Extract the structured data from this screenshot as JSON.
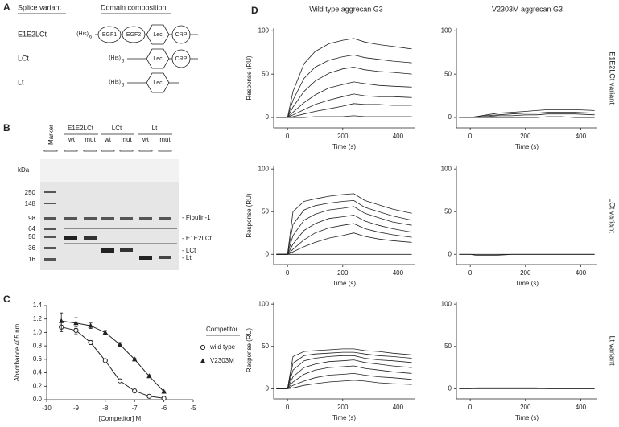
{
  "panel_a": {
    "label": "A",
    "headers": [
      "Splice variant",
      "Domain composition"
    ],
    "his": "(His)",
    "his_sub": "6",
    "rows": [
      {
        "name": "E1E2LCt",
        "domains": [
          "EGF1",
          "EGF2",
          "Lec",
          "CRP"
        ]
      },
      {
        "name": "LCt",
        "domains": [
          "Lec",
          "CRP"
        ]
      },
      {
        "name": "Lt",
        "domains": [
          "Lec"
        ]
      }
    ]
  },
  "panel_b": {
    "label": "B",
    "marker": "Marker",
    "groups": [
      "E1E2LCt",
      "LCt",
      "Lt"
    ],
    "lanes": [
      "wt",
      "mut"
    ],
    "unit": "kDa",
    "sizes": [
      "250",
      "148",
      "98",
      "64",
      "50",
      "36",
      "16"
    ],
    "bands": [
      "- Fibulin-1",
      "- E1E2LCt",
      "- LCt",
      "- Lt"
    ]
  },
  "panel_c": {
    "label": "C"
  },
  "panel_d": {
    "label": "D",
    "columns": [
      "Wild type aggrecan G3",
      "V2303M aggrecan G3"
    ],
    "rows": [
      "E1E2LCt variant",
      "LCt variant",
      "Lt variant"
    ]
  },
  "chart_data": [
    {
      "type": "line",
      "xlabel": "[Competitor] M",
      "ylabel": "Absorbance 405 nm",
      "legend_title": "Competitor",
      "x": [
        -9.5,
        -9,
        -8.5,
        -8,
        -7.5,
        -7,
        -6.5,
        -6
      ],
      "series": [
        {
          "name": "wild type",
          "color": "#222",
          "marker": "circle-open",
          "values": [
            1.08,
            1.03,
            0.85,
            0.58,
            0.28,
            0.13,
            0.05,
            0.02
          ],
          "errors": [
            0.07,
            0.05,
            0.03,
            0.02,
            0.01,
            0.01,
            0.01,
            0.01
          ]
        },
        {
          "name": "V2303M",
          "color": "#222",
          "marker": "triangle",
          "values": [
            1.17,
            1.14,
            1.1,
            1.0,
            0.82,
            0.6,
            0.35,
            0.12
          ],
          "errors": [
            0.12,
            0.08,
            0.04,
            0.03,
            0.03,
            0.02,
            0.02,
            0.01
          ]
        }
      ],
      "xlim": [
        -10,
        -5
      ],
      "xticks": [
        -10,
        -9,
        -8,
        -7,
        -6,
        -5
      ],
      "ylim": [
        0,
        1.4
      ],
      "yticks": [
        {
          "value": 0,
          "label": "0.0"
        },
        0.2,
        0.4,
        0.6,
        0.8,
        {
          "value": 1,
          "label": "1.0"
        },
        1.2,
        1.4
      ]
    },
    {
      "type": "line",
      "color": "#222",
      "xlabel": "Time (s)",
      "ylabel": "Response (RU)",
      "x": [
        -40,
        0,
        20,
        60,
        100,
        150,
        200,
        240,
        280,
        330,
        380,
        450
      ],
      "series": [
        {
          "values": [
            0,
            0,
            30,
            62,
            76,
            85,
            89,
            91,
            87,
            84,
            82,
            79
          ]
        },
        {
          "values": [
            0,
            0,
            20,
            45,
            58,
            66,
            70,
            72,
            69,
            67,
            65,
            63
          ]
        },
        {
          "values": [
            0,
            0,
            12,
            30,
            42,
            51,
            56,
            58,
            55,
            53,
            52,
            50
          ]
        },
        {
          "values": [
            0,
            0,
            6,
            17,
            26,
            34,
            38,
            41,
            39,
            37,
            36,
            35
          ]
        },
        {
          "values": [
            0,
            0,
            3,
            9,
            15,
            20,
            24,
            27,
            25,
            24,
            24,
            23
          ]
        },
        {
          "values": [
            0,
            0,
            1,
            4,
            7,
            10,
            13,
            16,
            15,
            15,
            14,
            14
          ]
        },
        {
          "values": [
            0,
            0,
            0,
            0,
            1,
            1,
            1,
            2,
            1,
            1,
            1,
            1
          ]
        }
      ],
      "xlim": [
        -50,
        460
      ],
      "xticks": [
        0,
        200,
        400
      ],
      "ylim": [
        -12,
        103
      ],
      "yticks": [
        0,
        50,
        100
      ]
    },
    {
      "type": "line",
      "color": "#222",
      "xlabel": "Time (s)",
      "x": [
        -40,
        0,
        20,
        60,
        100,
        150,
        200,
        240,
        280,
        330,
        380,
        450
      ],
      "series": [
        {
          "values": [
            0,
            0,
            1,
            3,
            5,
            6,
            7,
            8,
            9,
            9,
            9,
            8
          ]
        },
        {
          "values": [
            0,
            0,
            1,
            2,
            3,
            4,
            5,
            5,
            6,
            6,
            6,
            5
          ]
        },
        {
          "values": [
            0,
            0,
            0,
            1,
            2,
            2,
            3,
            3,
            4,
            4,
            4,
            3
          ]
        },
        {
          "values": [
            0,
            0,
            0,
            0,
            0,
            0,
            0,
            0,
            1,
            1,
            0,
            0
          ]
        }
      ],
      "xlim": [
        -50,
        460
      ],
      "xticks": [
        0,
        200,
        400
      ],
      "ylim": [
        -12,
        103
      ],
      "yticks": [
        0,
        50,
        100
      ]
    },
    {
      "type": "line",
      "color": "#222",
      "xlabel": "Time (s)",
      "ylabel": "Response (RU)",
      "x": [
        -40,
        0,
        20,
        60,
        100,
        150,
        200,
        240,
        280,
        330,
        380,
        450
      ],
      "series": [
        {
          "values": [
            0,
            0,
            50,
            62,
            65,
            68,
            70,
            71,
            63,
            58,
            53,
            48
          ]
        },
        {
          "values": [
            0,
            0,
            35,
            52,
            57,
            60,
            62,
            63,
            55,
            50,
            45,
            40
          ]
        },
        {
          "values": [
            0,
            0,
            22,
            40,
            47,
            52,
            54,
            56,
            48,
            43,
            38,
            34
          ]
        },
        {
          "values": [
            0,
            0,
            12,
            28,
            36,
            42,
            44,
            46,
            39,
            34,
            30,
            26
          ]
        },
        {
          "values": [
            0,
            0,
            6,
            17,
            25,
            31,
            34,
            36,
            30,
            26,
            23,
            20
          ]
        },
        {
          "values": [
            0,
            0,
            3,
            9,
            14,
            19,
            22,
            25,
            21,
            18,
            16,
            14
          ]
        },
        {
          "values": [
            0,
            0,
            0,
            0,
            0,
            0,
            0,
            0,
            0,
            0,
            0,
            0
          ]
        }
      ],
      "xlim": [
        -50,
        460
      ],
      "xticks": [
        0,
        200,
        400
      ],
      "ylim": [
        -12,
        103
      ],
      "yticks": [
        0,
        50,
        100
      ]
    },
    {
      "type": "line",
      "color": "#222",
      "xlabel": "Time (s)",
      "x": [
        -40,
        0,
        20,
        60,
        100,
        150,
        200,
        240,
        280,
        330,
        380,
        450
      ],
      "series": [
        {
          "values": [
            0,
            0,
            0,
            0,
            0,
            0,
            0,
            0,
            0,
            0,
            0,
            0
          ]
        },
        {
          "values": [
            0,
            0,
            -1,
            -1,
            -1,
            0,
            0,
            0,
            0,
            0,
            0,
            0
          ]
        }
      ],
      "xlim": [
        -50,
        460
      ],
      "xticks": [
        0,
        200,
        400
      ],
      "ylim": [
        -12,
        103
      ],
      "yticks": [
        0,
        50,
        100
      ]
    },
    {
      "type": "line",
      "color": "#222",
      "xlabel": "Time (s)",
      "ylabel": "Response (RU)",
      "x": [
        -40,
        0,
        20,
        60,
        100,
        150,
        200,
        240,
        280,
        330,
        380,
        450
      ],
      "series": [
        {
          "values": [
            0,
            0,
            38,
            44,
            45,
            46,
            47,
            47,
            45,
            44,
            42,
            40
          ]
        },
        {
          "values": [
            0,
            0,
            30,
            39,
            41,
            42,
            43,
            43,
            41,
            39,
            38,
            36
          ]
        },
        {
          "values": [
            0,
            0,
            22,
            33,
            36,
            38,
            39,
            39,
            36,
            34,
            33,
            31
          ]
        },
        {
          "values": [
            0,
            0,
            14,
            25,
            29,
            32,
            33,
            34,
            31,
            29,
            27,
            25
          ]
        },
        {
          "values": [
            0,
            0,
            8,
            17,
            22,
            25,
            26,
            27,
            24,
            22,
            20,
            18
          ]
        },
        {
          "values": [
            0,
            0,
            4,
            9,
            13,
            16,
            17,
            18,
            16,
            14,
            13,
            11
          ]
        },
        {
          "values": [
            0,
            0,
            1,
            4,
            6,
            8,
            9,
            10,
            9,
            7,
            6,
            5
          ]
        }
      ],
      "xlim": [
        -50,
        460
      ],
      "xticks": [
        0,
        200,
        400
      ],
      "ylim": [
        -12,
        103
      ],
      "yticks": [
        0,
        50,
        100
      ]
    },
    {
      "type": "line",
      "color": "#222",
      "xlabel": "Time (s)",
      "x": [
        -40,
        0,
        20,
        60,
        100,
        150,
        200,
        240,
        280,
        330,
        380,
        450
      ],
      "series": [
        {
          "values": [
            0,
            0,
            0,
            0,
            0,
            0,
            0,
            0,
            0,
            0,
            0,
            0
          ]
        },
        {
          "values": [
            0,
            0,
            1,
            1,
            1,
            1,
            1,
            1,
            0,
            0,
            0,
            0
          ]
        }
      ],
      "xlim": [
        -50,
        460
      ],
      "xticks": [
        0,
        200,
        400
      ],
      "ylim": [
        -12,
        103
      ],
      "yticks": [
        0,
        50,
        100
      ]
    }
  ]
}
